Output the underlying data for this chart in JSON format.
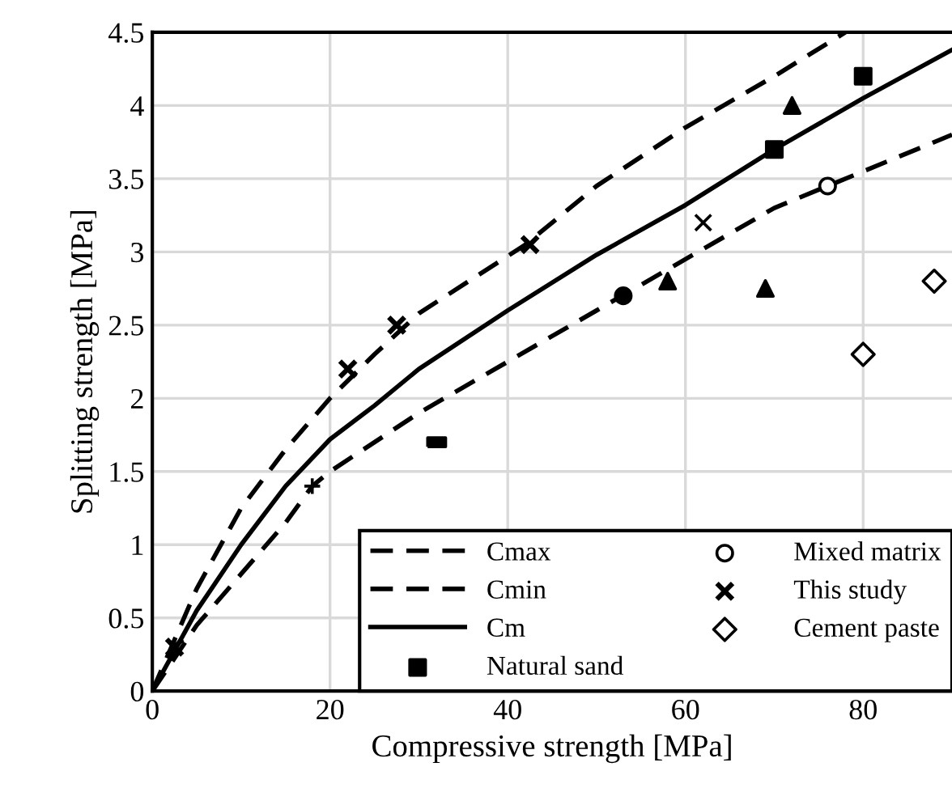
{
  "chart_data": {
    "type": "line",
    "xlabel": "Compressive strength [MPa]",
    "ylabel": "Splitting strength [MPa]",
    "xlim": [
      0,
      90
    ],
    "ylim": [
      0,
      4.5
    ],
    "xticks": [
      0,
      20,
      40,
      60,
      80
    ],
    "yticks": [
      0,
      0.5,
      1,
      1.5,
      2,
      2.5,
      3,
      3.5,
      4,
      4.5
    ],
    "grid": true,
    "legend": "bottom right",
    "series": [
      {
        "name": "Cmax",
        "line_style": "dashed",
        "color": "#000000",
        "x": [
          0,
          5,
          10,
          15,
          20,
          25,
          30,
          42,
          50,
          60,
          70,
          78
        ],
        "values": [
          0,
          0.7,
          1.25,
          1.65,
          2.0,
          2.3,
          2.58,
          3.05,
          3.45,
          3.85,
          4.2,
          4.5
        ]
      },
      {
        "name": "Cmin",
        "line_style": "dashed",
        "color": "#000000",
        "x": [
          0,
          5,
          10,
          15,
          18,
          20,
          30,
          40,
          50,
          60,
          70,
          80,
          90
        ],
        "values": [
          0,
          0.45,
          0.8,
          1.15,
          1.4,
          1.5,
          1.9,
          2.25,
          2.6,
          2.95,
          3.3,
          3.55,
          3.8
        ]
      },
      {
        "name": "Cm",
        "line_style": "solid",
        "color": "#000000",
        "x": [
          0,
          5,
          10,
          15,
          20,
          25,
          30,
          40,
          50,
          60,
          70,
          80,
          90
        ],
        "values": [
          0,
          0.55,
          1.0,
          1.4,
          1.72,
          1.95,
          2.2,
          2.6,
          2.98,
          3.32,
          3.7,
          4.05,
          4.38
        ]
      },
      {
        "name": "Natural sand",
        "type": "scatter",
        "marker": "square",
        "color": "#000000",
        "x": [
          70,
          80
        ],
        "values": [
          3.7,
          4.2
        ]
      },
      {
        "type": "scatter",
        "marker": "triangle",
        "color": "#000000",
        "x": [
          72,
          58,
          69
        ],
        "values": [
          4.0,
          2.8,
          2.75
        ]
      },
      {
        "name": "Mixed matrix",
        "type": "scatter",
        "marker": "circle",
        "color": "#ffffff",
        "x": [
          76
        ],
        "values": [
          3.45
        ]
      },
      {
        "type": "scatter",
        "color": "#000000",
        "x": [
          32
        ],
        "values": [
          1.7
        ]
      },
      {
        "type": "scatter",
        "marker": "plus",
        "color": "#000000",
        "x": [
          18
        ],
        "values": [
          1.4
        ]
      },
      {
        "type": "scatter",
        "marker": "cross",
        "color": "#000000",
        "x": [
          62
        ],
        "values": [
          3.2
        ]
      },
      {
        "name": "This study",
        "type": "scatter",
        "marker": "cross",
        "color": "#000000",
        "x": [
          2.5,
          22,
          27.5,
          42.5
        ],
        "values": [
          0.3,
          2.2,
          2.5,
          3.05
        ]
      },
      {
        "name": "Cement paste",
        "type": "scatter",
        "marker": "diamond",
        "color": "#ffffff",
        "x": [
          80,
          88
        ],
        "values": [
          2.3,
          2.8
        ]
      },
      {
        "type": "scatter",
        "marker": "circle",
        "color": "#000000",
        "x": [
          53
        ],
        "values": [
          2.7
        ]
      }
    ]
  }
}
